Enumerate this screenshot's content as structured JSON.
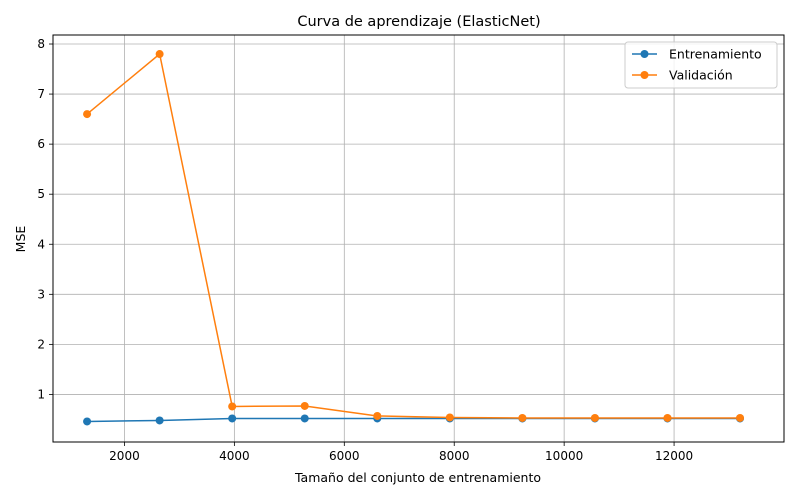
{
  "chart_data": {
    "type": "line",
    "title": "Curva de aprendizaje (ElasticNet)",
    "xlabel": "Tamaño del conjunto de entrenamiento",
    "ylabel": "MSE",
    "xlim": [
      700,
      14000
    ],
    "ylim": [
      0.05,
      8.18
    ],
    "xticks": [
      2000,
      4000,
      6000,
      8000,
      10000,
      12000
    ],
    "yticks": [
      1,
      2,
      3,
      4,
      5,
      6,
      7,
      8
    ],
    "grid": true,
    "legend_position": "top-right",
    "x": [
      1320,
      2640,
      3960,
      5280,
      6600,
      7920,
      9240,
      10560,
      11880,
      13200
    ],
    "series": [
      {
        "name": "Entrenamiento",
        "color": "#1f77b4",
        "values": [
          0.46,
          0.48,
          0.52,
          0.52,
          0.52,
          0.52,
          0.52,
          0.52,
          0.52,
          0.52
        ]
      },
      {
        "name": "Validación",
        "color": "#ff7f0e",
        "values": [
          6.6,
          7.8,
          0.76,
          0.77,
          0.57,
          0.54,
          0.53,
          0.53,
          0.53,
          0.53
        ]
      }
    ]
  }
}
